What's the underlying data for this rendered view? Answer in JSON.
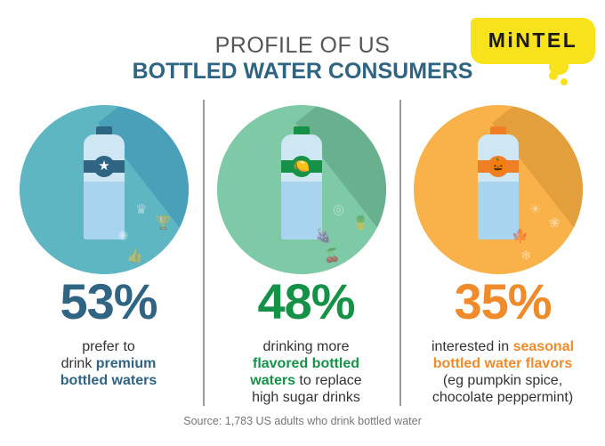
{
  "header": {
    "line1": "PROFILE OF US",
    "line2": "BOTTLED WATER CONSUMERS"
  },
  "logo": {
    "text": "MiNTEL",
    "color": "#f7e21b"
  },
  "stats": [
    {
      "percent": "53%",
      "color": "#2f6483",
      "circle": "#5fb6c3",
      "shadow": "#4aa0b8",
      "cap": "#2f6483",
      "band": "#2f6483",
      "icon": "★",
      "deco": [
        "♛",
        "🏆",
        "✺",
        "👍"
      ],
      "desc": [
        {
          "t": "prefer to",
          "h": false
        },
        {
          "t": "drink ",
          "h": false
        },
        {
          "t": "premium",
          "h": true
        },
        {
          "t": "bottled waters",
          "h": true
        }
      ],
      "lines": [
        [
          "prefer to"
        ],
        [
          "drink ",
          "premium"
        ],
        [
          "bottled waters"
        ]
      ]
    },
    {
      "percent": "48%",
      "color": "#169148",
      "circle": "#7ecaa6",
      "shadow": "#69b08f",
      "cap": "#169148",
      "band": "#169148",
      "icon": "🍋",
      "deco": [
        "◎",
        "🍍",
        "🍇",
        "🍒"
      ],
      "lines": [
        [
          "drinking more"
        ],
        [
          "flavored bottled"
        ],
        [
          "waters",
          " to replace"
        ],
        [
          "high sugar drinks"
        ]
      ]
    },
    {
      "percent": "35%",
      "color": "#ef8b2a",
      "circle": "#f9b24a",
      "shadow": "#e39f3c",
      "cap": "#ef7f24",
      "band": "#ef7f24",
      "icon": "🎃",
      "deco": [
        "☀",
        "❀",
        "🍁",
        "❄"
      ],
      "lines": [
        [
          "interested in ",
          "seasonal"
        ],
        [
          "bottled water flavors"
        ],
        [
          "(eg pumpkin spice,"
        ],
        [
          "chocolate peppermint)"
        ]
      ]
    }
  ],
  "source": "Source: 1,783 US adults who drink bottled water"
}
